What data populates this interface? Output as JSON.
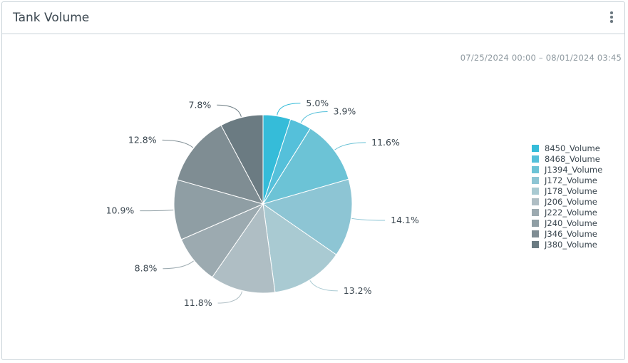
{
  "header": {
    "title": "Tank Volume",
    "menu_icon": "more-vertical-icon"
  },
  "date_range": "07/25/2024 00:00 – 08/01/2024 03:45",
  "chart_data": {
    "type": "pie",
    "title": "",
    "legend_position": "right",
    "slices": [
      {
        "name": "8450_Volume",
        "value": 5.0,
        "label": "5.0%",
        "color": "#35bcd9"
      },
      {
        "name": "8468_Volume",
        "value": 3.9,
        "label": "3.9%",
        "color": "#55c0da"
      },
      {
        "name": "J1394_Volume",
        "value": 11.6,
        "label": "11.6%",
        "color": "#6cc3d6"
      },
      {
        "name": "J172_Volume",
        "value": 14.1,
        "label": "14.1%",
        "color": "#8dc5d4"
      },
      {
        "name": "J178_Volume",
        "value": 13.2,
        "label": "13.2%",
        "color": "#a9cad2"
      },
      {
        "name": "J206_Volume",
        "value": 11.8,
        "label": "11.8%",
        "color": "#afbec4"
      },
      {
        "name": "J222_Volume",
        "value": 8.8,
        "label": "8.8%",
        "color": "#9caab0"
      },
      {
        "name": "J240_Volume",
        "value": 10.9,
        "label": "10.9%",
        "color": "#8f9ea4"
      },
      {
        "name": "J346_Volume",
        "value": 12.8,
        "label": "12.8%",
        "color": "#7f8d93"
      },
      {
        "name": "J380_Volume",
        "value": 7.8,
        "label": "7.8%",
        "color": "#6b7b82"
      }
    ]
  }
}
